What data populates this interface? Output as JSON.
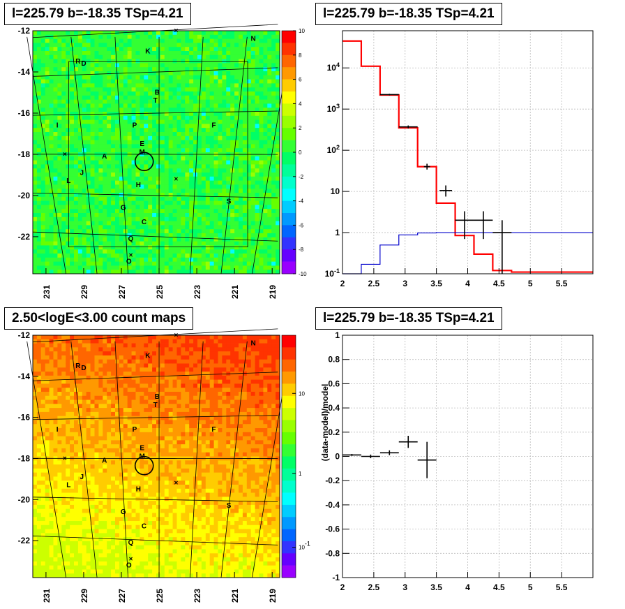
{
  "titles": {
    "tl": "l=225.79 b=-18.35 TSp=4.21",
    "tr": "l=225.79 b=-18.35 TSp=4.21",
    "bl": "2.50<logE<3.00 count maps",
    "br": "l=225.79 b=-18.35 TSp=4.21"
  },
  "chart_data": [
    {
      "type": "heatmap",
      "id": "residual-map",
      "x_ticks": [
        "231",
        "229",
        "227",
        "225",
        "223",
        "221",
        "219"
      ],
      "y_ticks": [
        "-12",
        "-14",
        "-16",
        "-18",
        "-20",
        "-22"
      ],
      "xlim": [
        231.7,
        218.6
      ],
      "ylim": [
        -23.8,
        -12
      ],
      "colorbar": {
        "min": -10,
        "max": 10,
        "ticks": [
          "10",
          "8",
          "6",
          "4",
          "2",
          "0",
          "-2",
          "-4",
          "-6",
          "-8",
          "-10"
        ]
      },
      "sources": [
        {
          "label": "N",
          "l": 220.0,
          "b": -12.5
        },
        {
          "label": "K",
          "l": 225.6,
          "b": -13.1
        },
        {
          "label": "R",
          "l": 229.3,
          "b": -13.6
        },
        {
          "label": "D",
          "l": 229.0,
          "b": -13.7
        },
        {
          "label": "B",
          "l": 225.1,
          "b": -15.1
        },
        {
          "label": "T",
          "l": 225.2,
          "b": -15.5
        },
        {
          "label": "I",
          "l": 230.4,
          "b": -16.7
        },
        {
          "label": "P",
          "l": 226.3,
          "b": -16.7
        },
        {
          "label": "F",
          "l": 222.1,
          "b": -16.7
        },
        {
          "label": "E",
          "l": 225.9,
          "b": -17.6
        },
        {
          "label": "M",
          "l": 225.9,
          "b": -18.0
        },
        {
          "label": "A",
          "l": 227.9,
          "b": -18.2
        },
        {
          "label": "J",
          "l": 229.1,
          "b": -19.0
        },
        {
          "label": "L",
          "l": 229.8,
          "b": -19.4
        },
        {
          "label": "H",
          "l": 226.1,
          "b": -19.6
        },
        {
          "label": "S",
          "l": 221.3,
          "b": -20.4
        },
        {
          "label": "G",
          "l": 226.9,
          "b": -20.7
        },
        {
          "label": "C",
          "l": 225.8,
          "b": -21.4
        },
        {
          "label": "Q",
          "l": 226.5,
          "b": -22.2
        },
        {
          "label": "O",
          "l": 226.6,
          "b": -23.3
        }
      ],
      "markers_x": [
        {
          "l": 224.1,
          "b": -12.0
        },
        {
          "l": 224.1,
          "b": -19.2
        },
        {
          "l": 226.5,
          "b": -22.9
        },
        {
          "l": 230.0,
          "b": -18.0
        }
      ],
      "roi_circle": {
        "l": 225.79,
        "b": -18.35
      }
    },
    {
      "type": "line",
      "id": "spectrum",
      "xlim": [
        2,
        6
      ],
      "ylim": [
        0.1,
        80000
      ],
      "log_y": true,
      "x_ticks": [
        "2",
        "2.5",
        "3",
        "3.5",
        "4",
        "4.5",
        "5",
        "5.5"
      ],
      "y_ticks": [
        "10^4",
        "10^3",
        "10^2",
        "10",
        "1",
        "10^-1"
      ],
      "bin_edges": [
        2.0,
        2.3,
        2.6,
        2.9,
        3.2,
        3.5,
        3.8,
        4.1,
        4.4,
        4.7,
        5.0,
        5.3,
        5.6,
        6.0
      ],
      "series": [
        {
          "color": "#ff0000",
          "values": [
            45000,
            11000,
            2200,
            350,
            40,
            5.2,
            0.85,
            0.3,
            0.12,
            0.11,
            0.11,
            0.11,
            0.11
          ]
        },
        {
          "color": "#0000cc",
          "values": [
            0.09,
            0.17,
            0.5,
            0.88,
            0.98,
            1.0,
            1.0,
            1.0,
            1.0,
            1.0,
            1.0,
            1.0,
            1.0
          ]
        }
      ],
      "data_points": [
        {
          "x": 2.75,
          "xerr": 0.15,
          "y": 2250,
          "ylo": 2150,
          "yhi": 2350
        },
        {
          "x": 3.05,
          "xerr": 0.15,
          "y": 370,
          "ylo": 340,
          "yhi": 400
        },
        {
          "x": 3.35,
          "xerr": 0.05,
          "y": 40,
          "ylo": 34,
          "yhi": 47
        },
        {
          "x": 3.65,
          "xerr": 0.1,
          "y": 10.5,
          "ylo": 7.5,
          "yhi": 14
        },
        {
          "x": 3.95,
          "xerr": 0.15,
          "y": 2,
          "ylo": 0.7,
          "yhi": 3.3
        },
        {
          "x": 4.25,
          "xerr": 0.15,
          "y": 2,
          "ylo": 0.7,
          "yhi": 3.3
        },
        {
          "x": 4.55,
          "xerr": 0.15,
          "y": 1,
          "ylo": 0.1,
          "yhi": 2
        }
      ]
    },
    {
      "type": "heatmap",
      "id": "count-map",
      "x_ticks": [
        "231",
        "229",
        "227",
        "225",
        "223",
        "221",
        "219"
      ],
      "y_ticks": [
        "-12",
        "-14",
        "-16",
        "-18",
        "-20",
        "-22"
      ],
      "xlim": [
        231.7,
        218.6
      ],
      "ylim": [
        -23.8,
        -12
      ],
      "colorbar": {
        "log": true,
        "ticks": [
          "10",
          "1",
          "10^-1"
        ]
      }
    },
    {
      "type": "scatter",
      "id": "ratio",
      "ylabel": "(data-model)/model",
      "xlim": [
        2,
        6
      ],
      "ylim": [
        -1,
        1
      ],
      "x_ticks": [
        "2",
        "2.5",
        "3",
        "3.5",
        "4",
        "4.5",
        "5",
        "5.5"
      ],
      "y_ticks": [
        "1",
        "0.8",
        "0.6",
        "0.4",
        "0.2",
        "0",
        "-0.2",
        "-0.4",
        "-0.6",
        "-0.8",
        "-1"
      ],
      "points": [
        {
          "x": 2.15,
          "xerr": 0.15,
          "y": 0.012,
          "err": 0.008
        },
        {
          "x": 2.45,
          "xerr": 0.15,
          "y": 0.0,
          "err": 0.015
        },
        {
          "x": 2.75,
          "xerr": 0.15,
          "y": 0.03,
          "err": 0.02
        },
        {
          "x": 3.05,
          "xerr": 0.15,
          "y": 0.12,
          "err": 0.05
        },
        {
          "x": 3.35,
          "xerr": 0.15,
          "y": -0.03,
          "err": 0.15
        }
      ]
    }
  ]
}
